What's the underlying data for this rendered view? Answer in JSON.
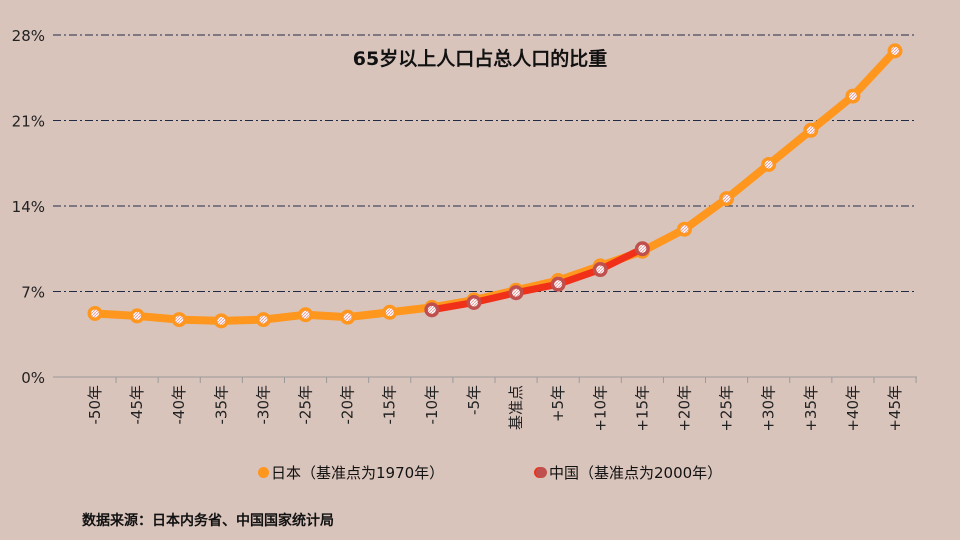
{
  "chart_data": {
    "type": "line",
    "title": "65岁以上人口占总人口的比重",
    "categories": [
      "-50年",
      "-45年",
      "-40年",
      "-35年",
      "-30年",
      "-25年",
      "-20年",
      "-15年",
      "-10年",
      "-5年",
      "基准点",
      "+5年",
      "+10年",
      "+15年",
      "+20年",
      "+25年",
      "+30年",
      "+35年",
      "+40年",
      "+45年"
    ],
    "ylim": [
      0,
      28
    ],
    "yticks": [
      0,
      7,
      14,
      21,
      28
    ],
    "ytick_labels": [
      "0%",
      "7%",
      "14%",
      "21%",
      "28%"
    ],
    "grid": true,
    "legend_position": "bottom",
    "series": [
      {
        "name": "日本（基准点为1970年）",
        "color": "#ff961e",
        "values": [
          5.2,
          5.0,
          4.7,
          4.6,
          4.7,
          5.1,
          4.9,
          5.3,
          5.7,
          6.3,
          7.1,
          7.9,
          9.1,
          10.3,
          12.1,
          14.6,
          17.4,
          20.2,
          23.0,
          26.7
        ]
      },
      {
        "name": "中国（基准点为2000年）",
        "color": "#f03018",
        "values": [
          null,
          null,
          null,
          null,
          null,
          null,
          null,
          null,
          5.5,
          6.1,
          6.9,
          7.6,
          8.8,
          10.5,
          null,
          null,
          null,
          null,
          null,
          null
        ]
      }
    ]
  },
  "footer": {
    "source": "数据来源：日本内务省、中国国家统计局"
  }
}
